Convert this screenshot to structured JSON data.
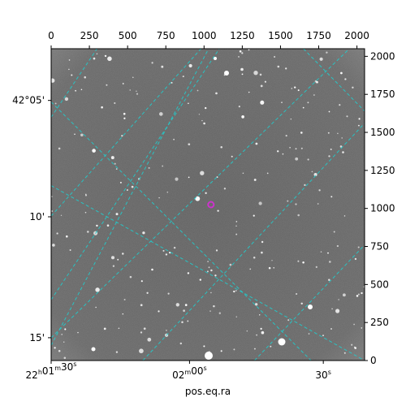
{
  "chart_data": {
    "type": "image",
    "description_free": true,
    "xlabel": "pos.eq.ra",
    "ylabel": "",
    "pixel_axes": {
      "x_ticks": [
        0,
        250,
        500,
        750,
        1000,
        1250,
        1500,
        1750,
        2000
      ],
      "y_ticks": [
        0,
        250,
        500,
        750,
        1000,
        1250,
        1500,
        1750,
        2000
      ],
      "xlim": [
        0,
        2050
      ],
      "ylim": [
        0,
        2050
      ]
    },
    "ra_tick_labels": [
      {
        "text": "22h01m30s",
        "h": "22",
        "m": "01",
        "s": "30"
      },
      {
        "text": "02m00s",
        "m": "02",
        "s": "00"
      },
      {
        "text": "30s",
        "s": "30"
      }
    ],
    "ra_tick_positions": [
      0,
      905,
      1780
    ],
    "dec_tick_labels": [
      "42°05'",
      "10'",
      "15'"
    ],
    "dec_tick_positions": [
      1710,
      945,
      150
    ],
    "marker": {
      "x": 1045,
      "y": 1025,
      "color": "#cc33cc"
    },
    "grid_color": "#22cccc",
    "grid_lines": [
      {
        "p1": [
          0,
          1600
        ],
        "p2": [
          300,
          2050
        ]
      },
      {
        "p1": [
          0,
          400
        ],
        "p2": [
          1100,
          2050
        ]
      },
      {
        "p1": [
          0,
          950
        ],
        "p2": [
          980,
          2050
        ]
      },
      {
        "p1": [
          0,
          150
        ],
        "p2": [
          1950,
          2050
        ]
      },
      {
        "p1": [
          600,
          0
        ],
        "p2": [
          2050,
          1560
        ]
      },
      {
        "p1": [
          1330,
          0
        ],
        "p2": [
          2050,
          760
        ]
      },
      {
        "p1": [
          0,
          1700
        ],
        "p2": [
          1700,
          0
        ]
      },
      {
        "p1": [
          0,
          1150
        ],
        "p2": [
          2050,
          0
        ]
      },
      {
        "p1": [
          0,
          100
        ],
        "p2": [
          1030,
          2050
        ]
      },
      {
        "p1": [
          380,
          2050
        ],
        "p2": [
          2050,
          2050
        ]
      },
      {
        "p1": [
          1650,
          2050
        ],
        "p2": [
          2050,
          1640
        ]
      }
    ]
  }
}
